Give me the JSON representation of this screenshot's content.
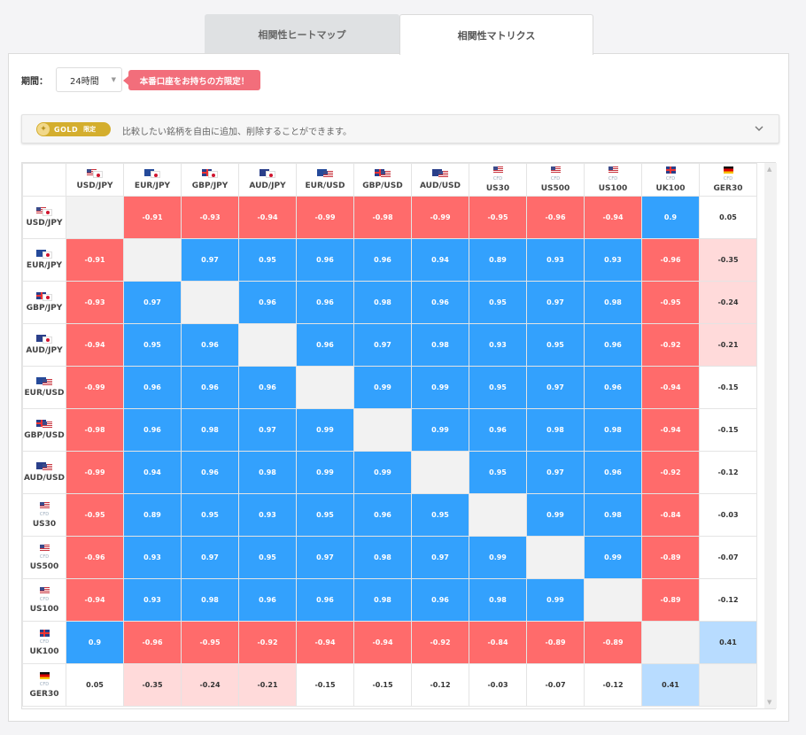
{
  "tabs": [
    {
      "label": "相関性ヒートマップ",
      "active": false
    },
    {
      "label": "相関性マトリクス",
      "active": true
    }
  ],
  "period": {
    "label": "期間：",
    "value": "24時間"
  },
  "notice": "本番口座をお持ちの方限定！",
  "gold": {
    "badge": "GOLD",
    "badge_sub": "限定",
    "text": "比較したい銘柄を自由に追加、削除することができます。"
  },
  "colors": {
    "positive": "#33a1fd",
    "negative": "#ff6b6b",
    "light_negative": "#ffdada",
    "light_positive": "#b8dcff",
    "diag": "#f2f2f2"
  },
  "matrix": {
    "instruments": [
      {
        "label": "USD/JPY",
        "flags": [
          "us",
          "jp"
        ],
        "cfd": false
      },
      {
        "label": "EUR/JPY",
        "flags": [
          "eu",
          "jp"
        ],
        "cfd": false
      },
      {
        "label": "GBP/JPY",
        "flags": [
          "gb",
          "jp"
        ],
        "cfd": false
      },
      {
        "label": "AUD/JPY",
        "flags": [
          "au",
          "jp"
        ],
        "cfd": false
      },
      {
        "label": "EUR/USD",
        "flags": [
          "eu",
          "us"
        ],
        "cfd": false
      },
      {
        "label": "GBP/USD",
        "flags": [
          "gb",
          "us"
        ],
        "cfd": false
      },
      {
        "label": "AUD/USD",
        "flags": [
          "au",
          "us"
        ],
        "cfd": false
      },
      {
        "label": "US30",
        "flags": [
          "us"
        ],
        "cfd": true
      },
      {
        "label": "US500",
        "flags": [
          "us"
        ],
        "cfd": true
      },
      {
        "label": "US100",
        "flags": [
          "us"
        ],
        "cfd": true
      },
      {
        "label": "UK100",
        "flags": [
          "gb"
        ],
        "cfd": true
      },
      {
        "label": "GER30",
        "flags": [
          "de"
        ],
        "cfd": true
      }
    ],
    "cfd_tag": "CFD",
    "values": [
      [
        null,
        "-0.91",
        "-0.93",
        "-0.94",
        "-0.99",
        "-0.98",
        "-0.99",
        "-0.95",
        "-0.96",
        "-0.94",
        "0.9",
        "0.05"
      ],
      [
        "-0.91",
        null,
        "0.97",
        "0.95",
        "0.96",
        "0.96",
        "0.94",
        "0.89",
        "0.93",
        "0.93",
        "-0.96",
        "-0.35"
      ],
      [
        "-0.93",
        "0.97",
        null,
        "0.96",
        "0.96",
        "0.98",
        "0.96",
        "0.95",
        "0.97",
        "0.98",
        "-0.95",
        "-0.24"
      ],
      [
        "-0.94",
        "0.95",
        "0.96",
        null,
        "0.96",
        "0.97",
        "0.98",
        "0.93",
        "0.95",
        "0.96",
        "-0.92",
        "-0.21"
      ],
      [
        "-0.99",
        "0.96",
        "0.96",
        "0.96",
        null,
        "0.99",
        "0.99",
        "0.95",
        "0.97",
        "0.96",
        "-0.94",
        "-0.15"
      ],
      [
        "-0.98",
        "0.96",
        "0.98",
        "0.97",
        "0.99",
        null,
        "0.99",
        "0.96",
        "0.98",
        "0.98",
        "-0.94",
        "-0.15"
      ],
      [
        "-0.99",
        "0.94",
        "0.96",
        "0.98",
        "0.99",
        "0.99",
        null,
        "0.95",
        "0.97",
        "0.96",
        "-0.92",
        "-0.12"
      ],
      [
        "-0.95",
        "0.89",
        "0.95",
        "0.93",
        "0.95",
        "0.96",
        "0.95",
        null,
        "0.99",
        "0.98",
        "-0.84",
        "-0.03"
      ],
      [
        "-0.96",
        "0.93",
        "0.97",
        "0.95",
        "0.97",
        "0.98",
        "0.97",
        "0.99",
        null,
        "0.99",
        "-0.89",
        "-0.07"
      ],
      [
        "-0.94",
        "0.93",
        "0.98",
        "0.96",
        "0.96",
        "0.98",
        "0.96",
        "0.98",
        "0.99",
        null,
        "-0.89",
        "-0.12"
      ],
      [
        "0.9",
        "-0.96",
        "-0.95",
        "-0.92",
        "-0.94",
        "-0.94",
        "-0.92",
        "-0.84",
        "-0.89",
        "-0.89",
        null,
        "0.41"
      ],
      [
        "0.05",
        "-0.35",
        "-0.24",
        "-0.21",
        "-0.15",
        "-0.15",
        "-0.12",
        "-0.03",
        "-0.07",
        "-0.12",
        "0.41",
        null
      ]
    ]
  }
}
